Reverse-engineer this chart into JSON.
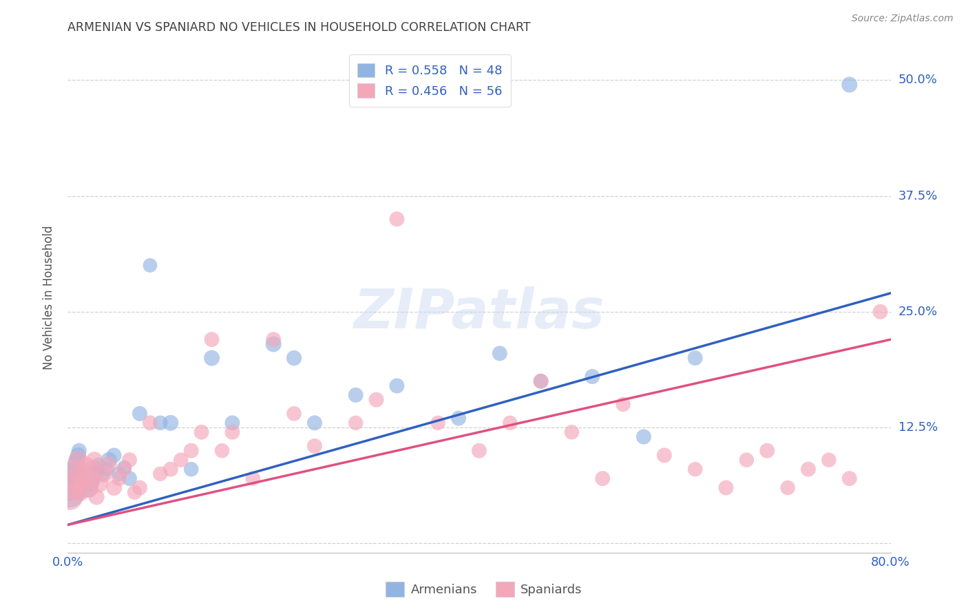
{
  "title": "ARMENIAN VS SPANIARD NO VEHICLES IN HOUSEHOLD CORRELATION CHART",
  "source": "Source: ZipAtlas.com",
  "ylabel": "No Vehicles in Household",
  "watermark": "ZIPatlas",
  "xlim": [
    0.0,
    0.8
  ],
  "ylim": [
    -0.01,
    0.54
  ],
  "armenian_color": "#92b4e3",
  "spaniard_color": "#f4a7b9",
  "armenian_line_color": "#3060c0",
  "spaniard_line_color": "#e05080",
  "R_armenian": 0.558,
  "N_armenian": 48,
  "R_spaniard": 0.456,
  "N_spaniard": 56,
  "legend_armenians": "Armenians",
  "legend_spaniards": "Spaniards",
  "armenian_x": [
    0.002,
    0.003,
    0.004,
    0.005,
    0.006,
    0.007,
    0.008,
    0.009,
    0.01,
    0.011,
    0.012,
    0.013,
    0.014,
    0.015,
    0.016,
    0.018,
    0.02,
    0.022,
    0.024,
    0.026,
    0.028,
    0.03,
    0.034,
    0.038,
    0.04,
    0.045,
    0.05,
    0.055,
    0.06,
    0.07,
    0.08,
    0.09,
    0.1,
    0.12,
    0.14,
    0.16,
    0.2,
    0.22,
    0.24,
    0.28,
    0.32,
    0.38,
    0.42,
    0.46,
    0.51,
    0.56,
    0.61,
    0.76
  ],
  "armenian_y": [
    0.055,
    0.06,
    0.065,
    0.07,
    0.075,
    0.08,
    0.085,
    0.09,
    0.095,
    0.1,
    0.055,
    0.06,
    0.065,
    0.07,
    0.075,
    0.08,
    0.06,
    0.065,
    0.07,
    0.075,
    0.08,
    0.085,
    0.075,
    0.08,
    0.09,
    0.095,
    0.075,
    0.082,
    0.07,
    0.14,
    0.3,
    0.13,
    0.13,
    0.08,
    0.2,
    0.13,
    0.215,
    0.2,
    0.13,
    0.16,
    0.17,
    0.135,
    0.205,
    0.175,
    0.18,
    0.115,
    0.2,
    0.495
  ],
  "armenian_size": [
    200,
    150,
    120,
    100,
    90,
    80,
    70,
    60,
    55,
    50,
    45,
    40,
    38,
    36,
    34,
    32,
    80,
    70,
    60,
    55,
    50,
    45,
    50,
    48,
    55,
    50,
    48,
    45,
    50,
    50,
    45,
    48,
    55,
    48,
    55,
    50,
    55,
    52,
    50,
    50,
    50,
    50,
    50,
    50,
    50,
    50,
    50,
    55
  ],
  "spaniard_x": [
    0.002,
    0.004,
    0.006,
    0.008,
    0.01,
    0.012,
    0.014,
    0.016,
    0.018,
    0.02,
    0.022,
    0.024,
    0.026,
    0.028,
    0.03,
    0.035,
    0.04,
    0.045,
    0.05,
    0.055,
    0.06,
    0.065,
    0.07,
    0.08,
    0.09,
    0.1,
    0.11,
    0.12,
    0.13,
    0.14,
    0.15,
    0.16,
    0.18,
    0.2,
    0.22,
    0.24,
    0.28,
    0.3,
    0.32,
    0.36,
    0.4,
    0.43,
    0.46,
    0.49,
    0.52,
    0.54,
    0.58,
    0.61,
    0.64,
    0.66,
    0.68,
    0.7,
    0.72,
    0.74,
    0.76,
    0.79
  ],
  "spaniard_y": [
    0.05,
    0.06,
    0.07,
    0.08,
    0.09,
    0.055,
    0.065,
    0.075,
    0.085,
    0.06,
    0.07,
    0.08,
    0.09,
    0.05,
    0.065,
    0.075,
    0.085,
    0.06,
    0.07,
    0.08,
    0.09,
    0.055,
    0.06,
    0.13,
    0.075,
    0.08,
    0.09,
    0.1,
    0.12,
    0.22,
    0.1,
    0.12,
    0.07,
    0.22,
    0.14,
    0.105,
    0.13,
    0.155,
    0.35,
    0.13,
    0.1,
    0.13,
    0.175,
    0.12,
    0.07,
    0.15,
    0.095,
    0.08,
    0.06,
    0.09,
    0.1,
    0.06,
    0.08,
    0.09,
    0.07,
    0.25
  ],
  "spaniard_size": [
    150,
    120,
    100,
    90,
    80,
    70,
    65,
    60,
    55,
    90,
    80,
    70,
    60,
    55,
    80,
    70,
    60,
    55,
    50,
    48,
    50,
    48,
    50,
    50,
    48,
    50,
    48,
    50,
    50,
    50,
    48,
    50,
    48,
    50,
    48,
    50,
    48,
    50,
    50,
    48,
    50,
    48,
    50,
    48,
    50,
    48,
    50,
    48,
    50,
    48,
    50,
    48,
    50,
    48,
    50,
    50
  ],
  "background_color": "#ffffff",
  "grid_color": "#cccccc",
  "title_color": "#404040",
  "source_color": "#888888",
  "axis_label_color": "#555555",
  "tick_color": "#3060c0",
  "legend_text_color": "#3060c0"
}
